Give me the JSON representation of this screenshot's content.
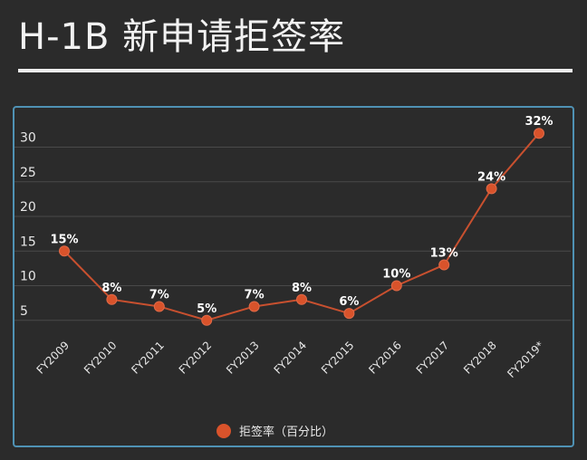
{
  "title": "H-1B 新申请拒签率",
  "chart_data": {
    "type": "line",
    "title": "H-1B 新申请拒签率",
    "categories": [
      "FY2009",
      "FY2010",
      "FY2011",
      "FY2012",
      "FY2013",
      "FY2014",
      "FY2015",
      "FY2016",
      "FY2017",
      "FY2018",
      "FY2019*"
    ],
    "series": [
      {
        "name": "拒签率（百分比）",
        "values": [
          15,
          8,
          7,
          5,
          7,
          8,
          6,
          10,
          13,
          24,
          32
        ],
        "data_labels": [
          "15%",
          "8%",
          "7%",
          "5%",
          "7%",
          "8%",
          "6%",
          "10%",
          "13%",
          "24%",
          "32%"
        ]
      }
    ],
    "yticks": [
      "5",
      "10",
      "15",
      "20",
      "25",
      "30"
    ],
    "ylim": [
      0,
      35
    ],
    "grid": true,
    "legend": "bottom",
    "colors": {
      "line": "#c8502f",
      "marker": "#d9532b",
      "grid": "#4a4a4a",
      "background": "#2b2b2b",
      "border": "#4f92b4"
    }
  }
}
